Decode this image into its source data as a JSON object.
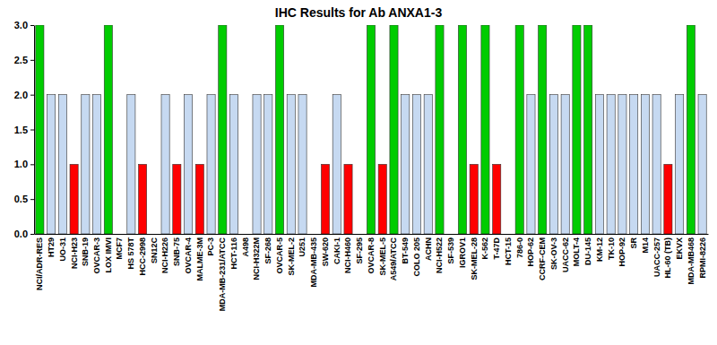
{
  "chart_data": {
    "type": "bar",
    "title": "IHC Results for Ab ANXA1-3",
    "categories": [
      "NCI/ADR-RES",
      "HT29",
      "UO-31",
      "NCI-H23",
      "SNB-19",
      "OVCAR-3",
      "LOX IMVI",
      "MCF7",
      "HS 578T",
      "HCC-2998",
      "SN12C",
      "NCI-H226",
      "SNB-75",
      "OVCAR-4",
      "MALME-3M",
      "PC-3",
      "MDA-MB-231/ATCC",
      "HCT-116",
      "A498",
      "NCI-H322M",
      "SF-268",
      "OVCAR-5",
      "SK-MEL-2",
      "U251",
      "MDA-MB-435",
      "SW-620",
      "CAKI-1",
      "NCI-H460",
      "SF-295",
      "OVCAR-8",
      "SK-MEL-5",
      "A549/ATCC",
      "BT-549",
      "COLO 205",
      "ACHN",
      "NCI-H522",
      "SF-539",
      "IGROV1",
      "SK-MEL-28",
      "K-562",
      "T-47D",
      "HCT-15",
      "786-0",
      "HOP-62",
      "CCRF-CEM",
      "SK-OV-3",
      "UACC-62",
      "MOLT-4",
      "DU-145",
      "KM-12",
      "TK-10",
      "HOP-92",
      "SR",
      "M14",
      "UACC-257",
      "HL-60 (TB)",
      "EKVX",
      "MDA-MB468",
      "RPMI-8226"
    ],
    "values": [
      3,
      2,
      2,
      1,
      2,
      2,
      3,
      0,
      2,
      1,
      0,
      2,
      1,
      2,
      1,
      2,
      3,
      2,
      0,
      2,
      2,
      3,
      2,
      2,
      0,
      1,
      2,
      1,
      0,
      3,
      1,
      3,
      2,
      2,
      2,
      3,
      0,
      3,
      1,
      3,
      1,
      0,
      3,
      2,
      3,
      2,
      2,
      3,
      3,
      2,
      2,
      2,
      2,
      2,
      2,
      1,
      2,
      3,
      2
    ],
    "colors": [
      "#00cc00",
      "#c6d9f1",
      "#c6d9f1",
      "#ff0000",
      "#c6d9f1",
      "#c6d9f1",
      "#00cc00",
      "#c6d9f1",
      "#c6d9f1",
      "#ff0000",
      "#c6d9f1",
      "#c6d9f1",
      "#ff0000",
      "#c6d9f1",
      "#ff0000",
      "#c6d9f1",
      "#00cc00",
      "#c6d9f1",
      "#c6d9f1",
      "#c6d9f1",
      "#c6d9f1",
      "#00cc00",
      "#c6d9f1",
      "#c6d9f1",
      "#c6d9f1",
      "#ff0000",
      "#c6d9f1",
      "#ff0000",
      "#c6d9f1",
      "#00cc00",
      "#ff0000",
      "#00cc00",
      "#c6d9f1",
      "#c6d9f1",
      "#c6d9f1",
      "#00cc00",
      "#c6d9f1",
      "#00cc00",
      "#ff0000",
      "#00cc00",
      "#ff0000",
      "#c6d9f1",
      "#00cc00",
      "#c6d9f1",
      "#00cc00",
      "#c6d9f1",
      "#c6d9f1",
      "#00cc00",
      "#00cc00",
      "#c6d9f1",
      "#c6d9f1",
      "#c6d9f1",
      "#c6d9f1",
      "#c6d9f1",
      "#c6d9f1",
      "#ff0000",
      "#c6d9f1",
      "#00cc00",
      "#c6d9f1"
    ],
    "ylim": [
      0,
      3
    ],
    "yticks": [
      {
        "value": 0,
        "label": "0.0"
      },
      {
        "value": 0.5,
        "label": "0.5"
      },
      {
        "value": 1,
        "label": "1.0"
      },
      {
        "value": 1.5,
        "label": "1.5"
      },
      {
        "value": 2,
        "label": "2.0"
      },
      {
        "value": 2.5,
        "label": "2.5"
      },
      {
        "value": 3,
        "label": "3.0"
      }
    ],
    "grid": false
  }
}
